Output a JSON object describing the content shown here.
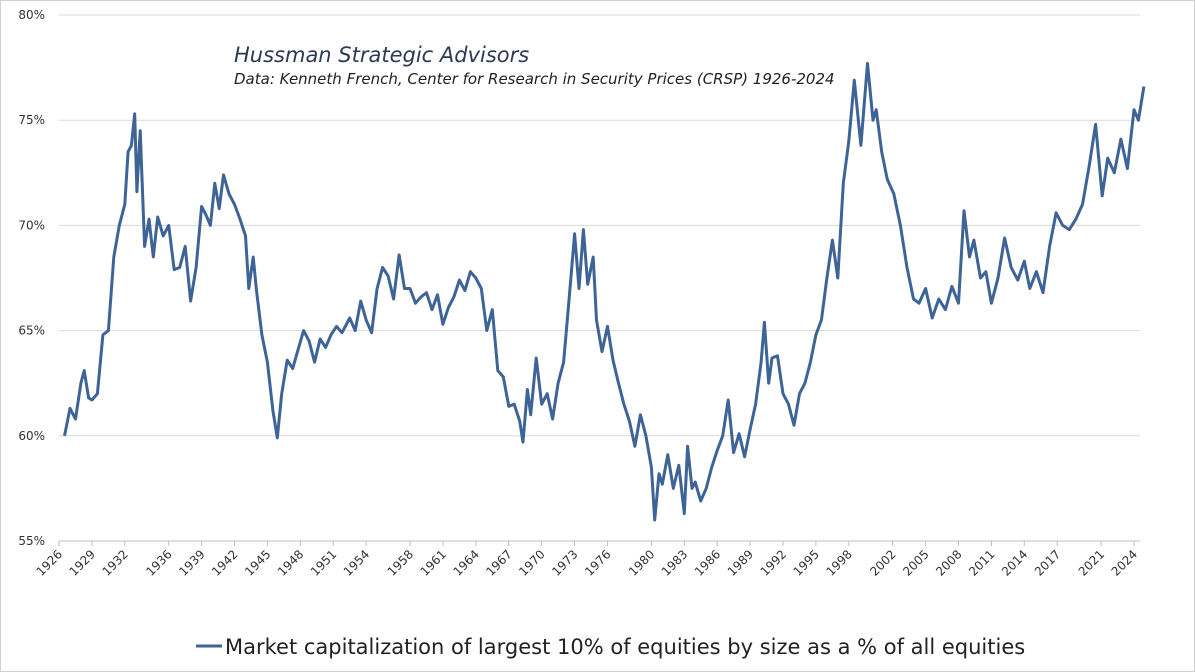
{
  "chart_data": {
    "type": "line",
    "title": "Hussman Strategic Advisors",
    "subtitle": "Data: Kenneth French, Center for Research in Security Prices (CRSP) 1926-2024",
    "x": [
      1926.5,
      1927,
      1927.5,
      1928,
      1928.3,
      1928.7,
      1929,
      1929.5,
      1930,
      1930.5,
      1931,
      1931.5,
      1932,
      1932.3,
      1932.6,
      1932.9,
      1933.1,
      1933.4,
      1933.8,
      1934.2,
      1934.6,
      1935,
      1935.5,
      1936,
      1936.5,
      1937,
      1937.5,
      1938,
      1938.5,
      1939,
      1939.4,
      1939.8,
      1940.2,
      1940.6,
      1941,
      1941.5,
      1942,
      1942.5,
      1943,
      1943.3,
      1943.7,
      1944,
      1944.5,
      1945,
      1945.5,
      1945.9,
      1946.3,
      1946.8,
      1947.3,
      1947.8,
      1948.3,
      1948.8,
      1949.3,
      1949.8,
      1950.3,
      1950.8,
      1951.3,
      1951.8,
      1952.5,
      1953,
      1953.5,
      1954,
      1954.5,
      1955,
      1955.5,
      1956,
      1956.5,
      1957,
      1957.5,
      1958,
      1958.5,
      1959,
      1959.5,
      1960,
      1960.5,
      1961,
      1961.5,
      1962,
      1962.5,
      1963,
      1963.5,
      1964,
      1964.5,
      1965,
      1965.5,
      1966,
      1966.5,
      1967,
      1967.5,
      1968,
      1968.3,
      1968.7,
      1969,
      1969.5,
      1970,
      1970.5,
      1971,
      1971.5,
      1972,
      1972.5,
      1973,
      1973.4,
      1973.8,
      1974.2,
      1974.7,
      1975,
      1975.5,
      1976,
      1976.5,
      1977,
      1977.5,
      1978,
      1978.5,
      1979,
      1979.5,
      1980,
      1980.3,
      1980.7,
      1981,
      1981.5,
      1982,
      1982.5,
      1983,
      1983.3,
      1983.7,
      1984,
      1984.5,
      1985,
      1985.5,
      1986,
      1986.5,
      1987,
      1987.5,
      1988,
      1988.5,
      1989,
      1989.5,
      1990,
      1990.3,
      1990.7,
      1991,
      1991.5,
      1992,
      1992.5,
      1993,
      1993.5,
      1994,
      1994.5,
      1995,
      1995.5,
      1996,
      1996.5,
      1997,
      1997.5,
      1998,
      1998.5,
      1999.1,
      1999.7,
      2000.2,
      2000.5,
      2001,
      2001.5,
      2002.1,
      2002.7,
      2003.3,
      2003.9,
      2004.4,
      2005,
      2005.6,
      2006.2,
      2006.8,
      2007.4,
      2008,
      2008.5,
      2009,
      2009.4,
      2010,
      2010.5,
      2011,
      2011.6,
      2012.2,
      2012.8,
      2013.4,
      2014,
      2014.5,
      2015.1,
      2015.7,
      2016.3,
      2016.9,
      2017.5,
      2018.1,
      2018.7,
      2019.3,
      2019.9,
      2020.5,
      2021.1,
      2021.6,
      2022.2,
      2022.8,
      2023.4,
      2024,
      2024.4,
      2024.9
    ],
    "series": [
      {
        "name": "Market capitalization of largest 10% of equities by size as a % of all equities",
        "color": "#3e6497",
        "values": [
          60.0,
          61.3,
          60.8,
          62.5,
          63.1,
          61.8,
          61.7,
          62.0,
          64.8,
          65.0,
          68.5,
          70.0,
          71.0,
          73.5,
          73.8,
          75.3,
          71.6,
          74.5,
          69.0,
          70.3,
          68.5,
          70.4,
          69.5,
          70.0,
          67.9,
          68.0,
          69.0,
          66.4,
          68.0,
          70.9,
          70.5,
          70.0,
          72.0,
          70.8,
          72.4,
          71.5,
          71.0,
          70.3,
          69.5,
          67.0,
          68.5,
          66.9,
          64.8,
          63.5,
          61.2,
          59.9,
          62.0,
          63.6,
          63.2,
          64.1,
          65.0,
          64.5,
          63.5,
          64.6,
          64.2,
          64.8,
          65.2,
          64.9,
          65.6,
          65.0,
          66.4,
          65.5,
          64.9,
          67.0,
          68.0,
          67.6,
          66.5,
          68.6,
          67.0,
          67.0,
          66.3,
          66.6,
          66.8,
          66.0,
          66.7,
          65.3,
          66.1,
          66.6,
          67.4,
          66.9,
          67.8,
          67.5,
          67.0,
          65.0,
          66.0,
          63.1,
          62.8,
          61.4,
          61.5,
          60.7,
          59.7,
          62.2,
          61.0,
          63.7,
          61.5,
          62.0,
          60.8,
          62.5,
          63.5,
          66.5,
          69.6,
          67.0,
          69.8,
          67.2,
          68.5,
          65.5,
          64.0,
          65.2,
          63.6,
          62.5,
          61.5,
          60.7,
          59.5,
          61.0,
          60.0,
          58.5,
          56.0,
          58.2,
          57.7,
          59.1,
          57.5,
          58.6,
          56.3,
          59.5,
          57.5,
          57.8,
          56.9,
          57.5,
          58.5,
          59.3,
          60.0,
          61.7,
          59.2,
          60.1,
          59.0,
          60.3,
          61.5,
          63.5,
          65.4,
          62.5,
          63.7,
          63.8,
          62.0,
          61.5,
          60.5,
          62.0,
          62.5,
          63.5,
          64.8,
          65.5,
          67.5,
          69.3,
          67.5,
          72.0,
          74.0,
          76.9,
          73.8,
          77.7,
          75.0,
          75.5,
          73.5,
          72.2,
          71.5,
          70.0,
          68.0,
          66.5,
          66.3,
          67.0,
          65.6,
          66.5,
          66.0,
          67.1,
          66.3,
          70.7,
          68.5,
          69.3,
          67.5,
          67.8,
          66.3,
          67.5,
          69.4,
          68.0,
          67.4,
          68.3,
          67.0,
          67.8,
          66.8,
          69.0,
          70.6,
          70.0,
          69.8,
          70.3,
          71.0,
          72.8,
          74.8,
          71.4,
          73.2,
          72.5,
          74.1,
          72.7,
          75.5,
          75.0,
          76.6
        ]
      }
    ],
    "xlim": [
      1926,
      2025
    ],
    "xticks": [
      1926,
      1929,
      1932,
      1936,
      1939,
      1942,
      1945,
      1948,
      1951,
      1954,
      1958,
      1961,
      1964,
      1967,
      1970,
      1973,
      1976,
      1980,
      1983,
      1986,
      1989,
      1992,
      1995,
      1998,
      2002,
      2005,
      2008,
      2011,
      2014,
      2017,
      2021,
      2024
    ],
    "ylim": [
      55,
      80
    ],
    "yticks": [
      {
        "value": 55,
        "label": "55%"
      },
      {
        "value": 60,
        "label": "60%"
      },
      {
        "value": 65,
        "label": "65%"
      },
      {
        "value": 70,
        "label": "70%"
      },
      {
        "value": 75,
        "label": "75%"
      },
      {
        "value": 80,
        "label": "80%"
      }
    ],
    "grid": true
  }
}
